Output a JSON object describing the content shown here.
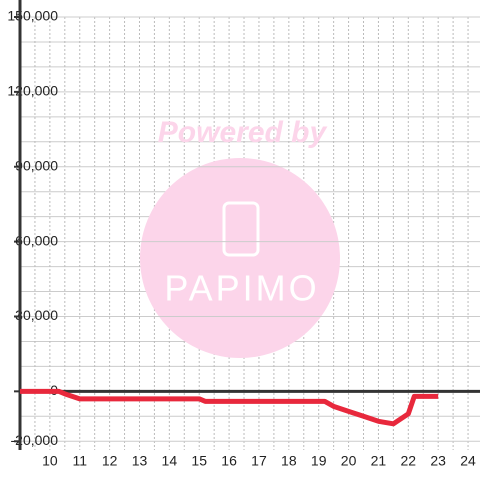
{
  "chart_data": {
    "type": "line",
    "annotations": [
      "Powered by",
      "PAPIMO"
    ],
    "x": [
      9,
      10.3,
      10.5,
      11,
      15,
      15.2,
      19.2,
      19.5,
      20,
      20.5,
      21,
      21.5,
      22,
      22.2,
      23
    ],
    "series": [
      {
        "color": "#e8283c",
        "values": [
          0,
          0,
          -1000,
          -3000,
          -3000,
          -4000,
          -4000,
          -6000,
          -8000,
          -10000,
          -12000,
          -13000,
          -9000,
          -2000,
          -2000
        ]
      }
    ],
    "xlim": [
      9,
      24.4
    ],
    "ylim": [
      -23500,
      150000
    ],
    "xticks": [
      10,
      11,
      12,
      13,
      14,
      15,
      16,
      17,
      18,
      19,
      20,
      21,
      22,
      23,
      24
    ],
    "yticks": [
      {
        "value": 150000,
        "label": "150,000"
      },
      {
        "value": 120000,
        "label": "120,000"
      },
      {
        "value": 90000,
        "label": "90,000"
      },
      {
        "value": 60000,
        "label": "60,000"
      },
      {
        "value": 30000,
        "label": "30,000"
      },
      0,
      {
        "value": -20000,
        "label": "-20,000"
      }
    ],
    "minor_yticks": [
      140000,
      130000,
      110000,
      100000,
      80000,
      70000,
      50000,
      40000,
      20000,
      10000,
      -10000
    ],
    "minor_xticks": [
      9.5,
      10.5,
      11.5,
      12.5,
      13.5,
      14.5,
      15.5,
      16.5,
      17.5,
      18.5,
      19.5,
      20.5,
      21.5,
      22.5,
      23.5
    ],
    "grid": true
  }
}
